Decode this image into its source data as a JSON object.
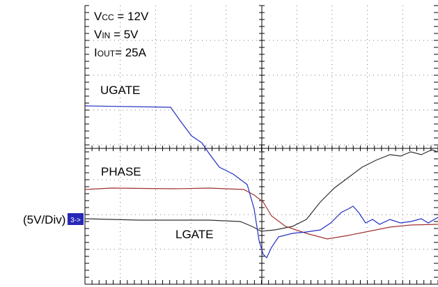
{
  "annotations": {
    "vcc": {
      "symbol": "V",
      "sub": "CC",
      "rest": " = 12V"
    },
    "vin": {
      "symbol": "V",
      "sub": "IN",
      "rest": " = 5V"
    },
    "iout": {
      "symbol": "I",
      "sub": "OUT",
      "rest": "= 25A"
    },
    "ugate": "UGATE",
    "phase": "PHASE",
    "lgate": "LGATE",
    "scale": "(5V/Div)",
    "channel_marker": "3->"
  }
}
